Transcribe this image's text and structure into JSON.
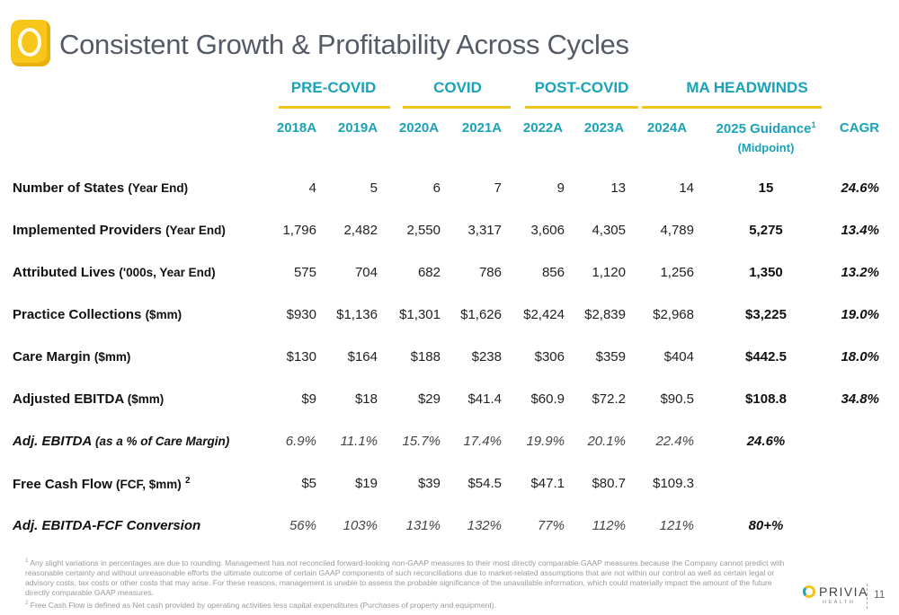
{
  "title": "Consistent Growth & Profitability Across Cycles",
  "eras": [
    "PRE-COVID",
    "COVID",
    "POST-COVID",
    "MA HEADWINDS"
  ],
  "years": [
    "2018A",
    "2019A",
    "2020A",
    "2021A",
    "2022A",
    "2023A",
    "2024A"
  ],
  "guidance_header": {
    "label": "2025 Guidance",
    "sup": "1",
    "sub": "(Midpoint)"
  },
  "cagr_header": "CAGR",
  "rows": [
    {
      "label": "Number of States",
      "paren": "(Year End)",
      "sup": "",
      "values": [
        "4",
        "5",
        "6",
        "7",
        "9",
        "13",
        "14"
      ],
      "guidance": "15",
      "cagr": "24.6%"
    },
    {
      "label": "Implemented Providers",
      "paren": "(Year End)",
      "sup": "",
      "values": [
        "1,796",
        "2,482",
        "2,550",
        "3,317",
        "3,606",
        "4,305",
        "4,789"
      ],
      "guidance": "5,275",
      "cagr": "13.4%"
    },
    {
      "label": "Attributed Lives",
      "paren": "('000s, Year End)",
      "sup": "",
      "values": [
        "575",
        "704",
        "682",
        "786",
        "856",
        "1,120",
        "1,256"
      ],
      "guidance": "1,350",
      "cagr": "13.2%"
    },
    {
      "label": "Practice Collections",
      "paren": "($mm)",
      "sup": "",
      "values": [
        "$930",
        "$1,136",
        "$1,301",
        "$1,626",
        "$2,424",
        "$2,839",
        "$2,968"
      ],
      "guidance": "$3,225",
      "cagr": "19.0%"
    },
    {
      "label": "Care Margin",
      "paren": "($mm)",
      "sup": "",
      "values": [
        "$130",
        "$164",
        "$188",
        "$238",
        "$306",
        "$359",
        "$404"
      ],
      "guidance": "$442.5",
      "cagr": "18.0%"
    },
    {
      "label": "Adjusted EBITDA",
      "paren": "($mm)",
      "sup": "",
      "values": [
        "$9",
        "$18",
        "$29",
        "$41.4",
        "$60.9",
        "$72.2",
        "$90.5"
      ],
      "guidance": "$108.8",
      "cagr": "34.8%"
    },
    {
      "label": "Adj. EBITDA",
      "paren": "(as a % of Care Margin)",
      "sup": "",
      "italic": true,
      "values": [
        "6.9%",
        "11.1%",
        "15.7%",
        "17.4%",
        "19.9%",
        "20.1%",
        "22.4%"
      ],
      "guidance": "24.6%",
      "cagr": ""
    },
    {
      "label": "Free Cash Flow",
      "paren": "(FCF, $mm)",
      "sup": "2",
      "values": [
        "$5",
        "$19",
        "$39",
        "$54.5",
        "$47.1",
        "$80.7",
        "$109.3"
      ],
      "guidance": "",
      "cagr": ""
    },
    {
      "label": "Adj. EBITDA-FCF Conversion",
      "paren": "",
      "sup": "",
      "italic": true,
      "values": [
        "56%",
        "103%",
        "131%",
        "132%",
        "77%",
        "112%",
        "121%"
      ],
      "guidance": "80+%",
      "cagr": ""
    }
  ],
  "footnotes": {
    "f1_sup": "1",
    "f1": "Any slight variations in percentages are due to rounding. Management has not reconciled forward-looking non-GAAP measures to their most directly comparable GAAP measures because the Company cannot predict with reasonable certainty and without unreasonable efforts the ultimate outcome of certain GAAP components of such reconciliations due to market-related assumptions that  are not within our control as well as certain legal or advisory costs, tax costs or other costs that may arise. For these reasons, management is unable to assess the probable significance of the unavailable information, which could materially impact the amount of the future directly comparable GAAP measures.",
    "f2_sup": "2",
    "f2": "Free Cash Flow is defined as Net cash provided by operating activities less capital expenditures (Purchases of property and equipment)."
  },
  "brand": {
    "name": "PRIVIA",
    "tagline": "HEALTH"
  },
  "page_number": "11",
  "colors": {
    "accent_teal": "#1aa3b8",
    "accent_yellow": "#f2c31a",
    "title_gray": "#555b66"
  }
}
